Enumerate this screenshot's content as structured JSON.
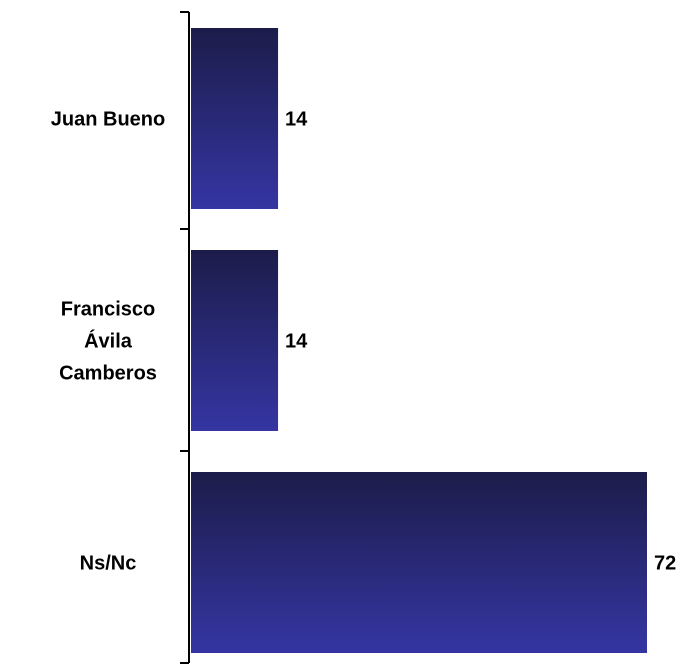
{
  "chart_data": {
    "type": "bar",
    "orientation": "horizontal",
    "categories": [
      [
        "Juan Bueno"
      ],
      [
        "Francisco",
        "Ávila",
        "Camberos"
      ],
      [
        "Ns/Nc"
      ]
    ],
    "values": [
      14,
      14,
      72
    ],
    "value_labels": [
      "14",
      "14",
      "72"
    ],
    "xlim": [
      0,
      72
    ],
    "grid": false,
    "legend": "none",
    "colors": {
      "bar_top": "#1c1c4a",
      "bar_bottom": "#3535a3",
      "axis": "#000000"
    }
  }
}
